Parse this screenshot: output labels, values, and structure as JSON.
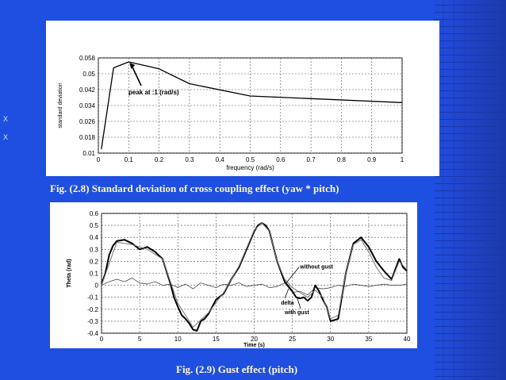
{
  "slide": {
    "caption_top": "Fig. (2.8) Standard deviation of cross coupling effect (yaw * pitch)",
    "caption_bottom": "Fig. (2.9) Gust effect (pitch)",
    "side_marker_1": "X",
    "side_marker_2": "X",
    "colors": {
      "background": "#1f4fe0",
      "caption_text": "#fff8d8",
      "panel": "#ffffff"
    }
  },
  "chart_data": [
    {
      "type": "line",
      "xlabel": "frequency (rad/s)",
      "ylabel": "standard deviation",
      "xlim": [
        0,
        1
      ],
      "ylim": [
        0.01,
        0.058
      ],
      "xticks": [
        "0",
        "0.1",
        "0.2",
        "0.3",
        "0.4",
        "0.5",
        "0.6",
        "0.7",
        "0.8",
        "0.9",
        "1"
      ],
      "yticks": [
        "0.01",
        "0.018",
        "0.026",
        "0.034",
        "0.042",
        "0.05",
        "0.058"
      ],
      "grid": true,
      "annotation": {
        "text": "peak at :1 (rad/s)",
        "x": 0.1,
        "y": 0.056
      },
      "series": [
        {
          "x": [
            0.01,
            0.05,
            0.1,
            0.2,
            0.3,
            0.5,
            0.7,
            1.0
          ],
          "y": [
            0.012,
            0.053,
            0.056,
            0.0525,
            0.045,
            0.0388,
            0.0375,
            0.0355
          ]
        }
      ]
    },
    {
      "type": "line",
      "xlabel": "Time (s)",
      "ylabel": "Theta (rad)",
      "xlim": [
        0,
        40
      ],
      "ylim": [
        -0.4,
        0.6
      ],
      "xticks": [
        "0",
        "5",
        "10",
        "15",
        "20",
        "25",
        "30",
        "35",
        "40"
      ],
      "yticks": [
        "-0.4",
        "-0.3",
        "-0.2",
        "-0.1",
        "0",
        "0.1",
        "0.2",
        "0.3",
        "0.4",
        "0.5",
        "0.6"
      ],
      "grid": true,
      "annotations": [
        {
          "text": "without gust",
          "x": 26,
          "y": 0.14
        },
        {
          "text": "delta",
          "x": 23.5,
          "y": -0.16
        },
        {
          "text": "with gust",
          "x": 24,
          "y": -0.24
        }
      ],
      "series": [
        {
          "label_ref": "with gust",
          "x": [
            0,
            0.5,
            1,
            1.5,
            2,
            3,
            4,
            5,
            6,
            7,
            8,
            8.5,
            9,
            9.5,
            10,
            10.5,
            11,
            11.5,
            12,
            12.5,
            13,
            13.5,
            14,
            15,
            16,
            17,
            18,
            19,
            20,
            20.5,
            21,
            21.5,
            22,
            23,
            24,
            25,
            25.5,
            26,
            26.5,
            27,
            27.5,
            28,
            28.5,
            29,
            29.5,
            30,
            31,
            32,
            33,
            34,
            35,
            36,
            37,
            38,
            39,
            39.5,
            40
          ],
          "y": [
            0.01,
            0.1,
            0.25,
            0.33,
            0.37,
            0.38,
            0.35,
            0.3,
            0.32,
            0.28,
            0.22,
            0.12,
            0.02,
            -0.1,
            -0.18,
            -0.25,
            -0.28,
            -0.32,
            -0.37,
            -0.38,
            -0.3,
            -0.28,
            -0.24,
            -0.12,
            -0.07,
            0.05,
            0.15,
            0.3,
            0.45,
            0.5,
            0.52,
            0.5,
            0.45,
            0.2,
            0.03,
            -0.05,
            -0.1,
            -0.11,
            -0.1,
            -0.13,
            -0.1,
            0.0,
            -0.05,
            -0.12,
            -0.18,
            -0.3,
            -0.28,
            0.1,
            0.35,
            0.4,
            0.32,
            0.2,
            0.12,
            0.05,
            0.22,
            0.15,
            0.12
          ]
        },
        {
          "label_ref": "without gust",
          "x": [
            0,
            2,
            4,
            6,
            8,
            10,
            12,
            14,
            16,
            18,
            20,
            21,
            22,
            23,
            24,
            25,
            26,
            27,
            28,
            29,
            30,
            31,
            32,
            33,
            34,
            35,
            36,
            37,
            38,
            39,
            40
          ],
          "y": [
            0.0,
            0.36,
            0.34,
            0.3,
            0.22,
            -0.15,
            -0.35,
            -0.23,
            -0.06,
            0.16,
            0.46,
            0.52,
            0.45,
            0.2,
            0.05,
            -0.02,
            -0.06,
            -0.1,
            -0.04,
            -0.1,
            -0.28,
            -0.25,
            0.1,
            0.34,
            0.38,
            0.28,
            0.15,
            0.06,
            0.04,
            0.2,
            0.13
          ]
        },
        {
          "label_ref": "delta",
          "x": [
            0,
            1,
            2,
            3,
            4,
            5,
            6,
            7,
            8,
            9,
            10,
            11,
            12,
            13,
            14,
            15,
            16,
            17,
            18,
            19,
            20,
            21,
            22,
            23,
            24,
            25,
            26,
            27,
            28,
            29,
            30,
            31,
            32,
            33,
            34,
            35,
            36,
            37,
            38,
            39,
            40
          ],
          "y": [
            0.0,
            0.03,
            0.05,
            0.03,
            0.06,
            0.02,
            0.01,
            0.03,
            0.0,
            0.01,
            -0.02,
            0.01,
            -0.03,
            0.02,
            0.0,
            -0.02,
            0.01,
            0.0,
            0.02,
            -0.01,
            0.0,
            0.01,
            -0.02,
            -0.01,
            0.02,
            -0.06,
            -0.05,
            -0.08,
            -0.02,
            -0.03,
            -0.02,
            0.0,
            -0.01,
            0.01,
            0.0,
            -0.01,
            0.0,
            0.01,
            0.0,
            0.0,
            0.01
          ]
        }
      ]
    }
  ]
}
